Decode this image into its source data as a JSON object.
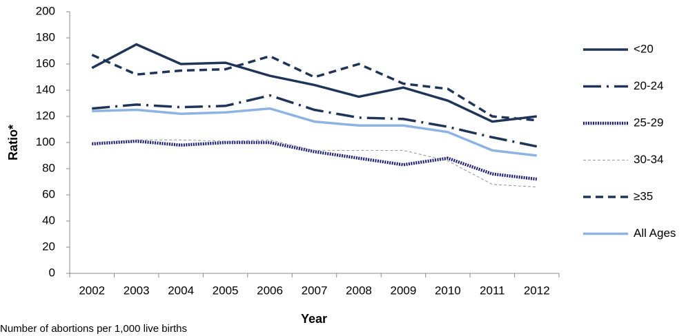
{
  "chart_data": {
    "type": "line",
    "x_label": "Year",
    "y_label": "Ratio*",
    "footnote": "Number of abortions per 1,000 live births",
    "categories": [
      "2002",
      "2003",
      "2004",
      "2005",
      "2006",
      "2007",
      "2008",
      "2009",
      "2010",
      "2011",
      "2012"
    ],
    "ylim": [
      0,
      200
    ],
    "yticks": [
      0,
      20,
      40,
      60,
      80,
      100,
      120,
      140,
      160,
      180,
      200
    ],
    "legend": "right",
    "series": [
      {
        "name": "<20",
        "color": "#1f3457",
        "values": [
          157,
          175,
          160,
          161,
          151,
          144,
          135,
          142,
          132,
          116,
          120
        ]
      },
      {
        "name": "20-24",
        "color": "#1f3457",
        "values": [
          126,
          129,
          127,
          128,
          136,
          125,
          119,
          118,
          112,
          104,
          97
        ]
      },
      {
        "name": "25-29",
        "color": "#1c1c80",
        "values": [
          99,
          101,
          98,
          100,
          100,
          93,
          88,
          83,
          88,
          76,
          72
        ]
      },
      {
        "name": "30-34",
        "color": "#777777",
        "values": [
          100,
          102,
          102,
          101,
          102,
          94,
          94,
          94,
          86,
          68,
          66
        ]
      },
      {
        "name": "≥35",
        "color": "#1f3457",
        "values": [
          167,
          152,
          155,
          156,
          166,
          150,
          160,
          145,
          141,
          120,
          117
        ]
      },
      {
        "name": "All Ages",
        "color": "#8db3e2",
        "values": [
          124,
          125,
          122,
          123,
          126,
          116,
          113,
          113,
          108,
          94,
          90
        ]
      }
    ]
  }
}
